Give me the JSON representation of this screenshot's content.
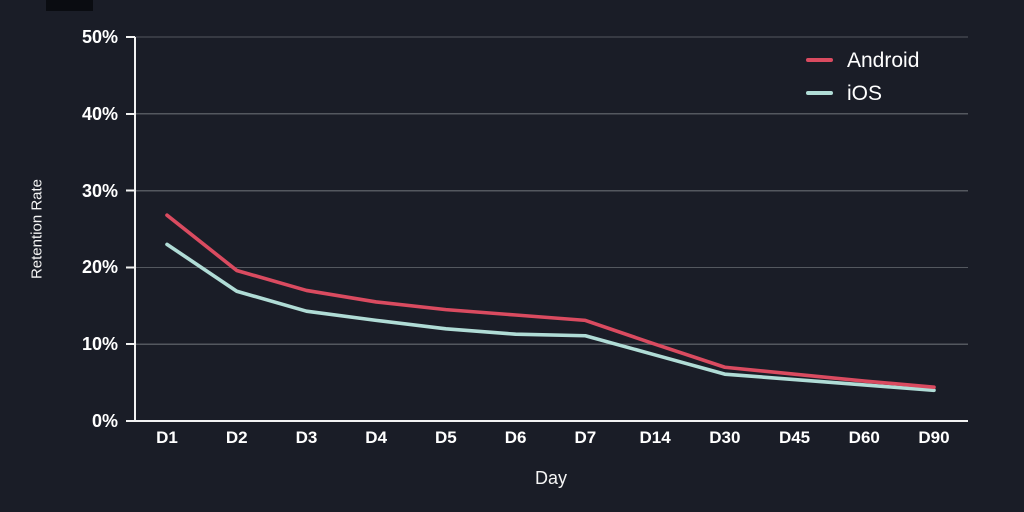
{
  "page": {
    "background": "#1a1d27",
    "text_color": "#ffffff",
    "gridline_color": "#54585f",
    "axis_color": "#f2f2f2"
  },
  "chart_data": {
    "type": "line",
    "categories": [
      "D1",
      "D2",
      "D3",
      "D4",
      "D5",
      "D6",
      "D7",
      "D14",
      "D30",
      "D45",
      "D60",
      "D90"
    ],
    "series": [
      {
        "name": "Android",
        "color": "#da4b60",
        "values": [
          26.8,
          19.6,
          17.0,
          15.5,
          14.5,
          13.8,
          13.1,
          10.0,
          7.0,
          6.1,
          5.2,
          4.4
        ]
      },
      {
        "name": "iOS",
        "color": "#b0dcd6",
        "values": [
          23.0,
          16.9,
          14.3,
          13.1,
          12.0,
          11.3,
          11.1,
          8.6,
          6.1,
          5.4,
          4.7,
          4.0
        ]
      }
    ],
    "xlabel": "Day",
    "ylabel": "Retention Rate",
    "ylim": [
      0,
      50
    ],
    "y_ticks": [
      "0%",
      "10%",
      "20%",
      "30%",
      "40%",
      "50%"
    ],
    "grid": "horizontal",
    "legend_position": "top-right"
  }
}
